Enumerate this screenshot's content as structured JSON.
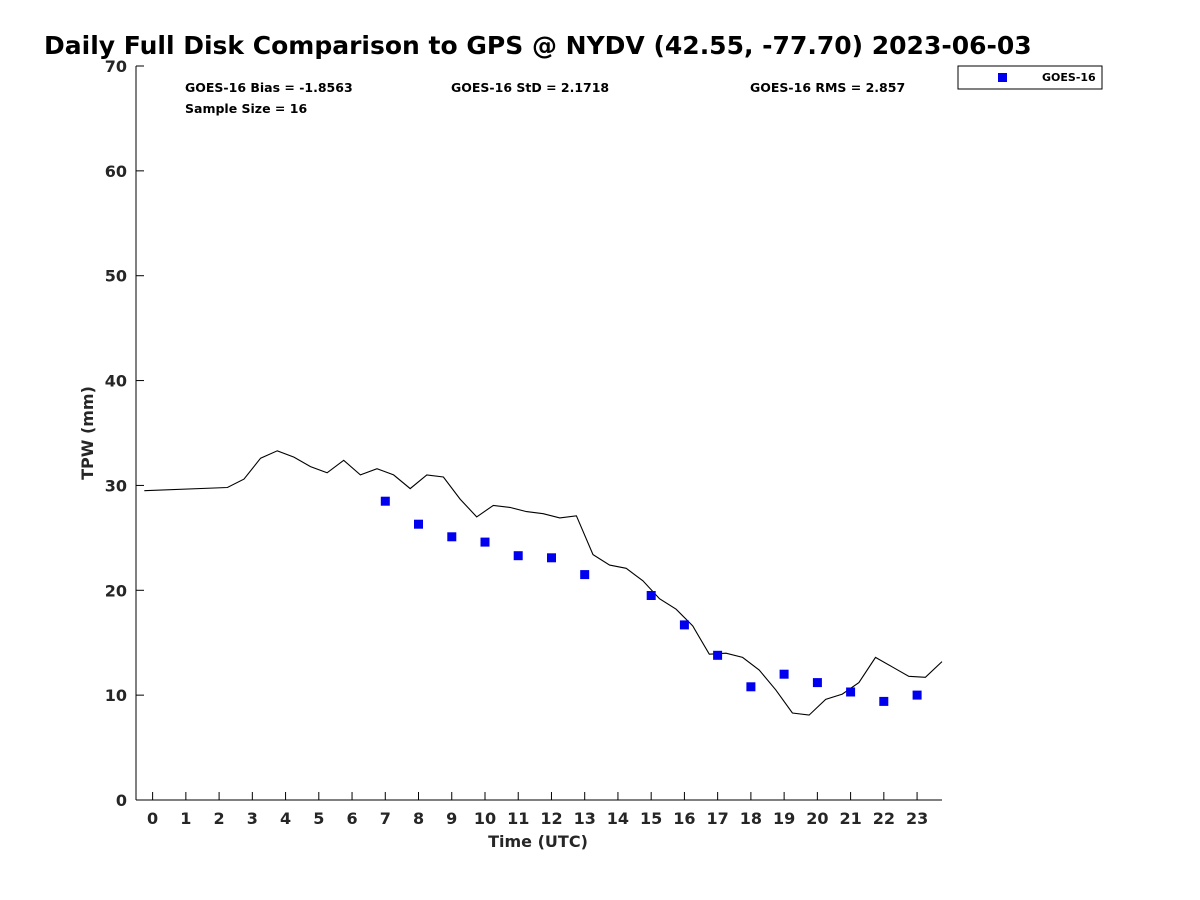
{
  "chart_data": {
    "type": "scatter",
    "title": "Daily Full Disk Comparison to GPS @ NYDV (42.55, -77.70) 2023-06-03",
    "xlabel": "Time (UTC)",
    "ylabel": "TPW (mm)",
    "xlim": [
      -0.5,
      23.75
    ],
    "ylim": [
      0,
      70
    ],
    "x_ticks": [
      0,
      1,
      2,
      3,
      4,
      5,
      6,
      7,
      8,
      9,
      10,
      11,
      12,
      13,
      14,
      15,
      16,
      17,
      18,
      19,
      20,
      21,
      22,
      23
    ],
    "y_ticks": [
      0,
      10,
      20,
      30,
      40,
      50,
      60,
      70
    ],
    "stats": {
      "bias": "GOES-16 Bias = -1.8563",
      "std": "GOES-16 StD = 2.1718",
      "rms": "GOES-16 RMS = 2.857",
      "sample": "Sample Size = 16"
    },
    "legend": {
      "position": "top-right",
      "entries": [
        "GOES-16"
      ]
    },
    "gps_line": {
      "x": [
        -0.25,
        2.25,
        2.75,
        3.25,
        3.75,
        4.25,
        4.75,
        5.25,
        5.75,
        6.25,
        6.75,
        7.25,
        7.75,
        8.25,
        8.75,
        9.25,
        9.75,
        10.25,
        10.75,
        11.25,
        11.75,
        12.25,
        12.75,
        13.25,
        13.75,
        14.25,
        14.75,
        15.25,
        15.75,
        16.25,
        16.75,
        17.25,
        17.75,
        18.25,
        18.75,
        19.25,
        19.75,
        20.25,
        20.75,
        21.25,
        21.75,
        22.25,
        22.75,
        23.25,
        23.75
      ],
      "y": [
        29.5,
        29.8,
        30.6,
        32.6,
        33.3,
        32.7,
        31.8,
        31.2,
        32.4,
        31.0,
        31.6,
        31.0,
        29.7,
        31.0,
        30.8,
        28.7,
        27.0,
        28.1,
        27.9,
        27.5,
        27.3,
        26.9,
        27.1,
        23.4,
        22.4,
        22.1,
        20.9,
        19.2,
        18.2,
        16.6,
        13.9,
        14.0,
        13.6,
        12.4,
        10.5,
        8.3,
        8.1,
        9.6,
        10.1,
        11.2,
        13.6,
        12.7,
        11.8,
        11.7,
        13.2
      ]
    },
    "series": [
      {
        "name": "GOES-16",
        "color": "#0000ee",
        "marker": "square",
        "x": [
          7,
          8,
          9,
          10,
          11,
          12,
          13,
          15,
          16,
          17,
          18,
          19,
          20,
          21,
          22,
          23
        ],
        "y": [
          28.5,
          26.3,
          25.1,
          24.6,
          23.3,
          23.1,
          21.5,
          19.5,
          16.7,
          13.8,
          10.8,
          12.0,
          11.2,
          10.3,
          9.4,
          10.0
        ]
      }
    ]
  }
}
